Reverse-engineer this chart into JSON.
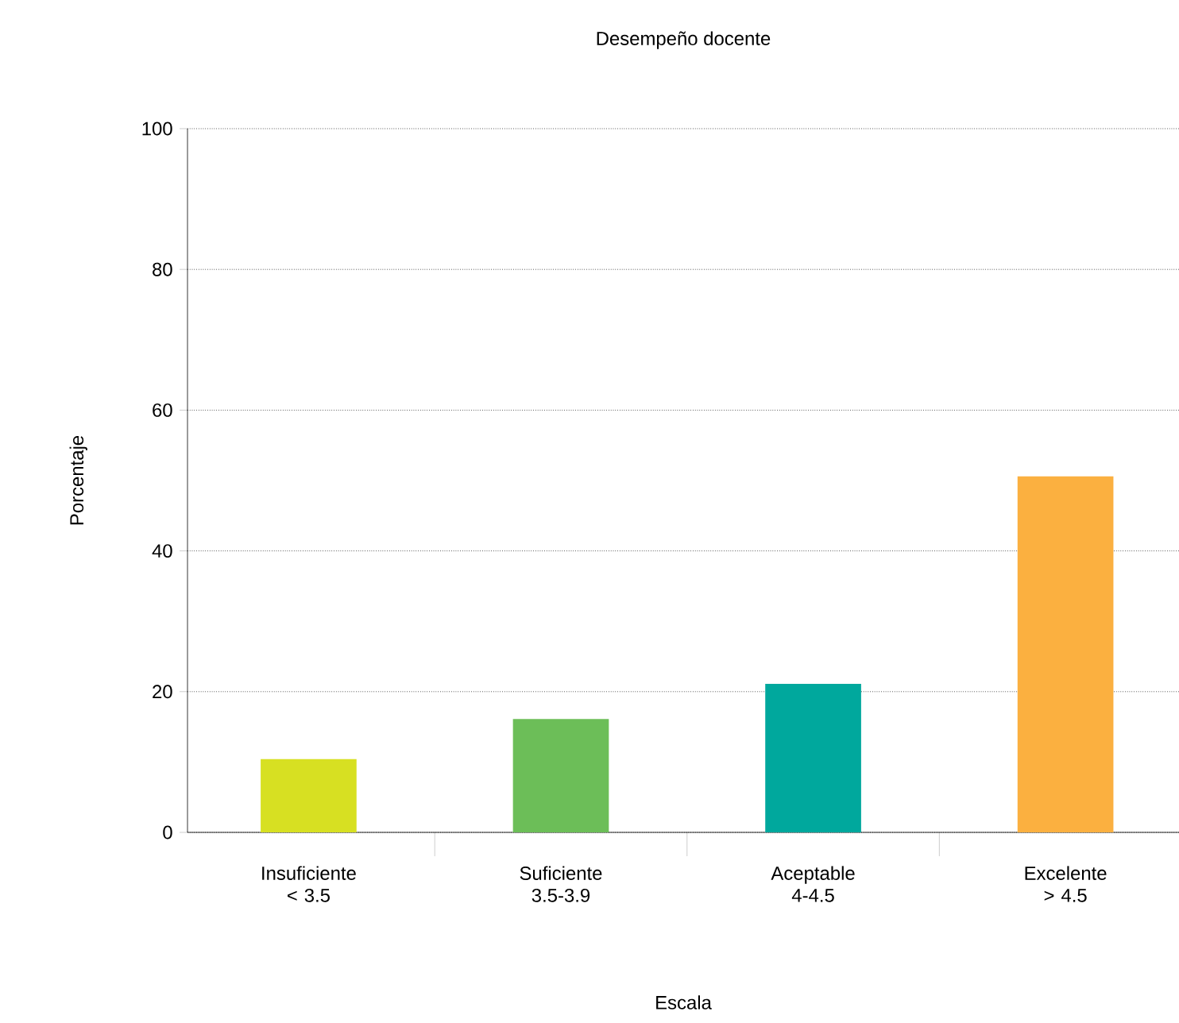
{
  "chart_data": {
    "type": "bar",
    "title": "Desempeño docente",
    "xlabel": "Escala",
    "ylabel": "Porcentaje",
    "categories": [
      "Insuficiente < 3.5",
      "Suficiente 3.5-3.9",
      "Aceptable 4-4.5",
      "Excelente > 4.5"
    ],
    "values": [
      10.4,
      16.1,
      21.1,
      50.6
    ],
    "colors": [
      "#d7e022",
      "#6cbe58",
      "#00a89d",
      "#fbb040"
    ],
    "ylim": [
      0,
      100
    ],
    "yticks": [
      0,
      20,
      40,
      60,
      80,
      100
    ],
    "grid": "y"
  }
}
